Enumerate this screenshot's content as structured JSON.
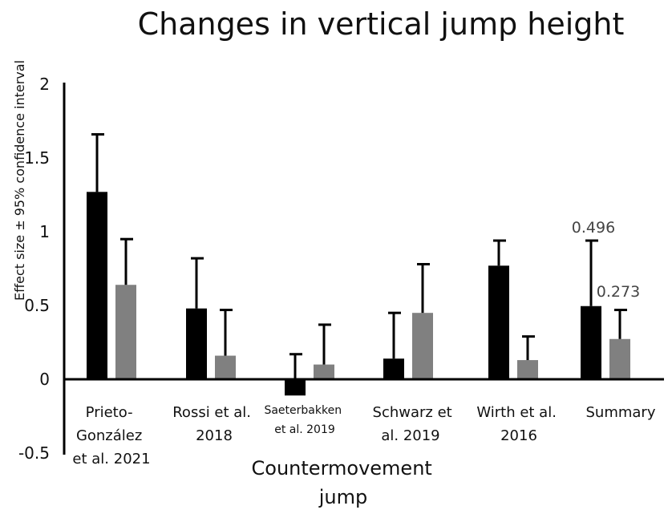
{
  "chart_data": {
    "type": "bar",
    "title": "Changes in vertical jump height",
    "ylabel": "Effect size ± 95% confidence interval",
    "xlabel": "Countermovement jump",
    "ylim": [
      -0.5,
      2
    ],
    "yticks": [
      "-0.5",
      "0",
      "0.5",
      "1",
      "1.5",
      "2"
    ],
    "categories": [
      "Prieto-González et al. 2021",
      "Rossi et al. 2018",
      "Saeterbakken et al. 2019",
      "Schwarz et al. 2019",
      "Wirth et al. 2016",
      "Summary"
    ],
    "series": [
      {
        "color": "#000000",
        "values": [
          1.27,
          0.48,
          -0.11,
          0.14,
          0.77,
          0.496
        ],
        "err_upper": [
          1.66,
          0.82,
          0.17,
          0.45,
          0.94,
          0.94
        ]
      },
      {
        "color": "#808080",
        "values": [
          0.64,
          0.16,
          0.1,
          0.45,
          0.13,
          0.273
        ],
        "err_upper": [
          0.95,
          0.47,
          0.37,
          0.78,
          0.29,
          0.47
        ]
      }
    ],
    "data_labels": {
      "summary_series1": "0.496",
      "summary_series2": "0.273"
    },
    "grid": false,
    "legend": "none"
  }
}
